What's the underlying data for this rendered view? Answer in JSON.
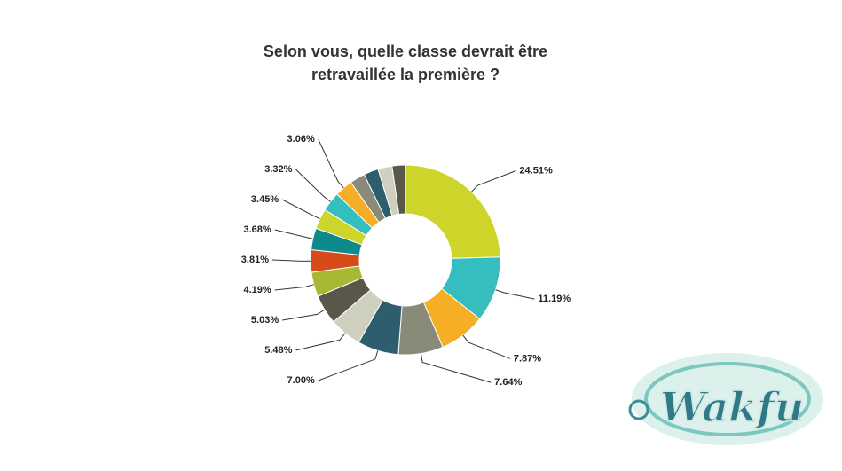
{
  "chart_data": {
    "type": "pie",
    "donut": true,
    "title": [
      "Selon vous, quelle classe devrait être",
      "retravaillée la première ?"
    ],
    "categories": [
      null,
      null,
      null,
      null,
      null,
      null,
      null,
      null,
      null,
      null,
      null,
      null,
      null,
      null,
      null,
      null,
      null
    ],
    "values": [
      24.51,
      11.19,
      7.87,
      7.64,
      7.0,
      5.48,
      5.03,
      4.19,
      3.81,
      3.68,
      3.45,
      3.32,
      3.06,
      2.6,
      2.5,
      2.4,
      2.27
    ],
    "value_labels": [
      "24.51%",
      "11.19%",
      "7.87%",
      "7.64%",
      "7.00%",
      "5.48%",
      "5.03%",
      "4.19%",
      "3.81%",
      "3.68%",
      "3.45%",
      "3.32%",
      "3.06%",
      null,
      null,
      null,
      null
    ],
    "colors": [
      "#cdd52a",
      "#35bdbf",
      "#f6ae27",
      "#8a8a78",
      "#2e5d6e",
      "#cfcfbf",
      "#59574a",
      "#a8b832",
      "#d54b1a",
      "#0e8a8c",
      "#cdd52a",
      "#35bdbf",
      "#f6ae27",
      "#8a8a78",
      "#2e5d6e",
      "#cfcfbf",
      "#59574a"
    ]
  },
  "logo": "Wakfu"
}
